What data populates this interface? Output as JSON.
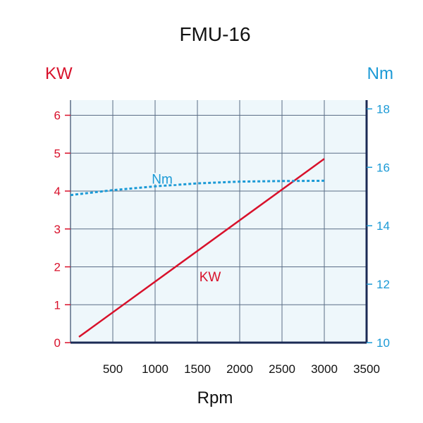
{
  "chart_data": {
    "type": "line",
    "title": "FMU-16",
    "xlabel": "Rpm",
    "xlim": [
      0,
      3500
    ],
    "x_ticks": [
      500,
      1000,
      1500,
      2000,
      2500,
      3000,
      3500
    ],
    "y_left": {
      "title": "KW",
      "color": "#d8112b",
      "lim": [
        0,
        6.4
      ],
      "ticks": [
        0,
        1,
        2,
        3,
        4,
        5,
        6
      ]
    },
    "y_right": {
      "title": "Nm",
      "color": "#1b9ad6",
      "lim": [
        10,
        18.3
      ],
      "ticks": [
        10,
        12,
        14,
        16,
        18
      ]
    },
    "grid": true,
    "series": [
      {
        "name": "KW",
        "axis": "left",
        "style": "solid",
        "color": "#d8112b",
        "x": [
          100,
          3000
        ],
        "y": [
          0.15,
          4.85
        ]
      },
      {
        "name": "Nm",
        "axis": "right",
        "style": "dotted",
        "color": "#1b9ad6",
        "x": [
          0,
          500,
          1000,
          1500,
          2000,
          2500,
          3000
        ],
        "y": [
          15.05,
          15.22,
          15.35,
          15.45,
          15.51,
          15.53,
          15.54
        ]
      }
    ]
  },
  "colors": {
    "plot_background": "#eef7fb",
    "grid": "#5a6d86",
    "axis": "#1b2a55"
  }
}
